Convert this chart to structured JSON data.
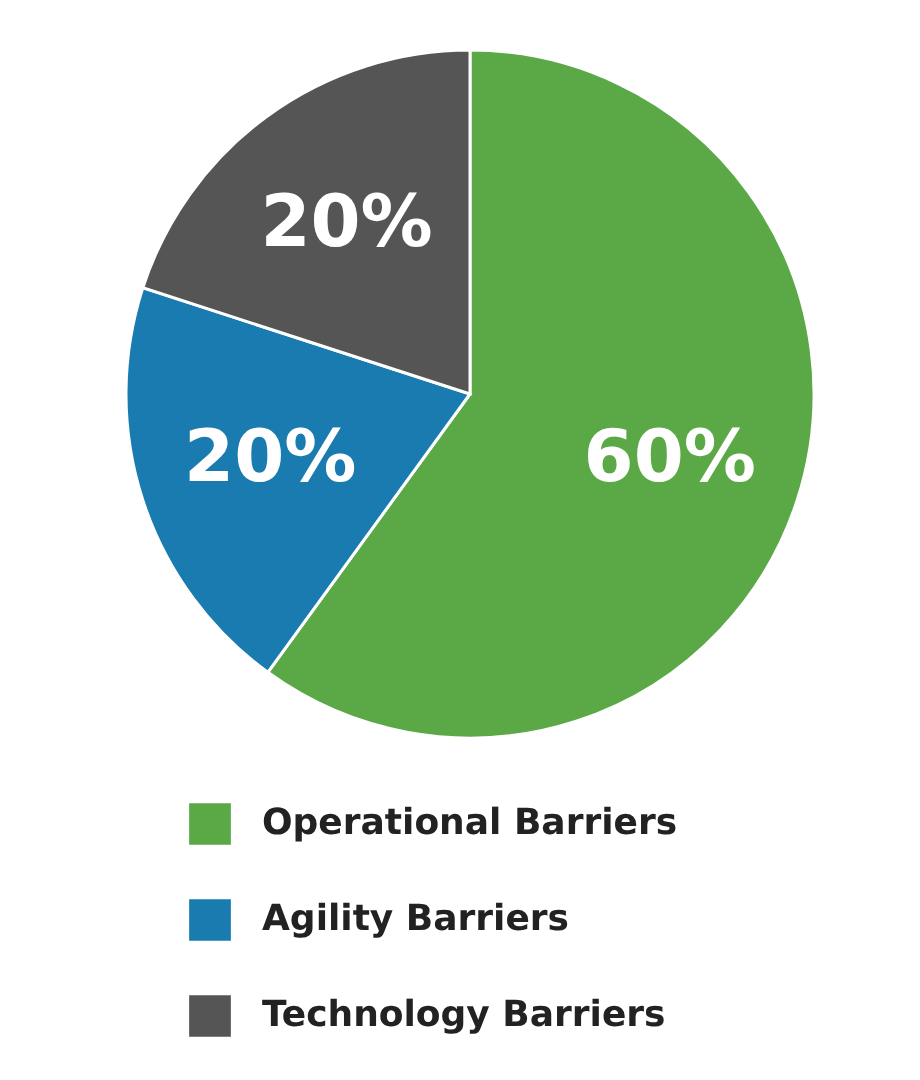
{
  "chart_data": {
    "type": "pie",
    "categories": [
      "Operational Barriers",
      "Agility Barriers",
      "Technology Barriers"
    ],
    "values": [
      60,
      20,
      20
    ],
    "colors": [
      "#5aa846",
      "#1a7bb0",
      "#555555"
    ],
    "value_labels": [
      "60%",
      "20%",
      "20%"
    ],
    "legend": "bottom"
  }
}
